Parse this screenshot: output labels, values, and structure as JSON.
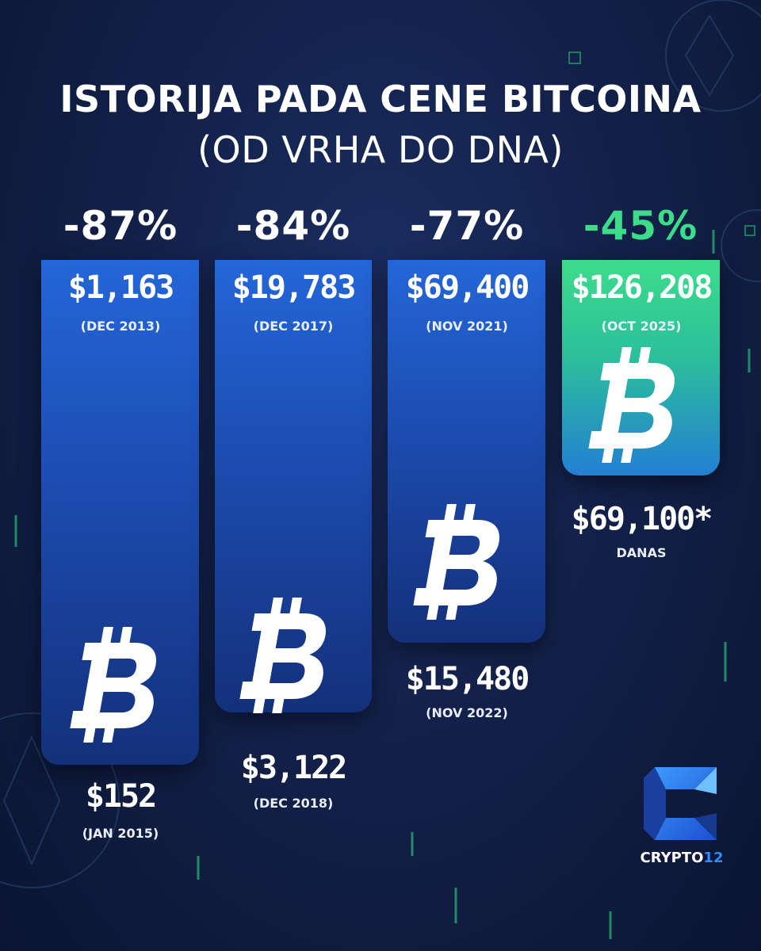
{
  "title": "ISTORIJA PADA CENE BITCOINA",
  "subtitle": "(OD VRHA DO DNA)",
  "chart_data": {
    "type": "bar",
    "categories": [
      "DEC 2013",
      "DEC 2017",
      "NOV 2021",
      "OCT 2025"
    ],
    "series": [
      {
        "values": [
          -87,
          -84,
          -77,
          -45
        ],
        "labels": [
          "-87%",
          "-84%",
          "-77%",
          "-45%"
        ]
      }
    ],
    "peaks": [
      {
        "price": 1163,
        "price_label": "$1,163",
        "date_label": "(DEC 2013)"
      },
      {
        "price": 19783,
        "price_label": "$19,783",
        "date_label": "(DEC 2017)"
      },
      {
        "price": 69400,
        "price_label": "$69,400",
        "date_label": "(NOV 2021)"
      },
      {
        "price": 126208,
        "price_label": "$126,208",
        "date_label": "(OCT 2025)"
      }
    ],
    "bottoms": [
      {
        "price": 152,
        "price_label": "$152",
        "date_label": "(JAN 2015)"
      },
      {
        "price": 3122,
        "price_label": "$3,122",
        "date_label": "(DEC 2018)"
      },
      {
        "price": 15480,
        "price_label": "$15,480",
        "date_label": "(NOV 2022)"
      },
      {
        "price": 69100,
        "price_label": "$69,100*",
        "date_label": "DANAS"
      }
    ],
    "colors": {
      "drop_bar": "#1f58c8",
      "current_bar_top": "#3ddc8b",
      "current_bar_bottom": "#237fd4",
      "current_label": "#3ddc8b"
    }
  },
  "brand": {
    "name": "CRYPTO",
    "accent": "12"
  }
}
